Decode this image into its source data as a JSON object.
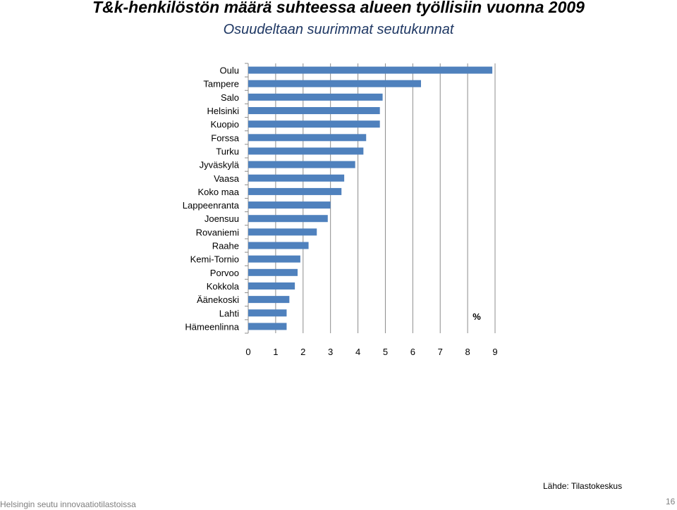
{
  "title": "T&k-henkilöstön määrä suhteessa alueen työllisiin vuonna 2009",
  "subtitle": "Osuudeltaan suurimmat seutukunnat",
  "chart_data": {
    "type": "bar",
    "orientation": "horizontal",
    "categories": [
      "Oulu",
      "Tampere",
      "Salo",
      "Helsinki",
      "Kuopio",
      "Forssa",
      "Turku",
      "Jyväskylä",
      "Vaasa",
      "Koko maa",
      "Lappeenranta",
      "Joensuu",
      "Rovaniemi",
      "Raahe",
      "Kemi-Tornio",
      "Porvoo",
      "Kokkola",
      "Äänekoski",
      "Lahti",
      "Hämeenlinna"
    ],
    "values": [
      8.9,
      6.3,
      4.9,
      4.8,
      4.8,
      4.3,
      4.2,
      3.9,
      3.5,
      3.4,
      3.0,
      2.9,
      2.5,
      2.2,
      1.9,
      1.8,
      1.7,
      1.5,
      1.4,
      1.4
    ],
    "xlim": [
      0,
      9
    ],
    "xticks": [
      0,
      1,
      2,
      3,
      4,
      5,
      6,
      7,
      8,
      9
    ],
    "unit_label": "%",
    "grid": true,
    "bar_color": "#4f81bd"
  },
  "source": "Lähde: Tilastokeskus",
  "footer": "Helsingin seutu innovaatiotilastoissa",
  "page_number": "16"
}
